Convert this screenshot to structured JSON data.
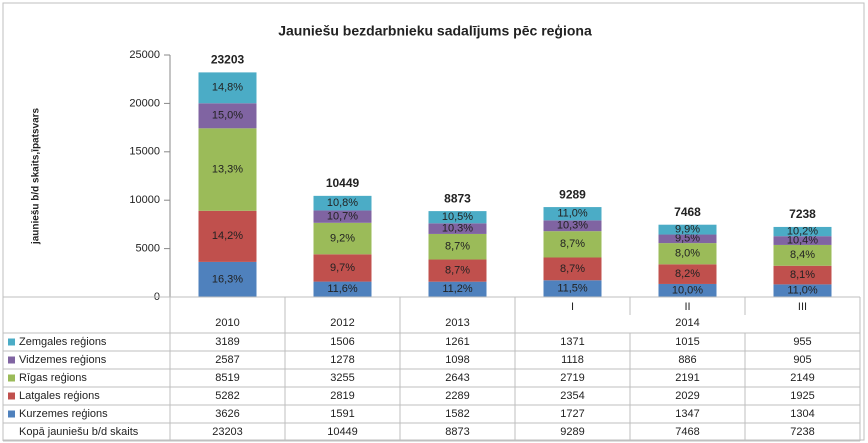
{
  "chart_data": {
    "type": "stacked_bar",
    "title": "Jauniešu bezdarbnieku sadalījums pēc reģiona",
    "y_label": "jauniešu b/d skaits,īpatsvars",
    "categories": [
      "2010",
      "2012",
      "2013",
      "I",
      "II",
      "III"
    ],
    "category_groups": [
      {
        "label": "2014",
        "members": [
          3,
          4,
          5
        ]
      }
    ],
    "ylim": [
      0,
      25000
    ],
    "yticks": [
      0,
      5000,
      10000,
      15000,
      20000,
      25000
    ],
    "grid": false,
    "series": [
      {
        "name": "Kurzemes reģions",
        "color": "#4f81bd",
        "values": [
          3626,
          1591,
          1582,
          1727,
          1347,
          1304
        ],
        "share_labels": [
          "16,3%",
          "11,6%",
          "11,2%",
          "11,5%",
          "10,0%",
          "11,0%"
        ]
      },
      {
        "name": "Latgales reģions",
        "color": "#c0504d",
        "values": [
          5282,
          2819,
          2289,
          2354,
          2029,
          1925
        ],
        "share_labels": [
          "14,2%",
          "9,7%",
          "8,7%",
          "8,7%",
          "8,2%",
          "8,1%"
        ]
      },
      {
        "name": "Rīgas reģions",
        "color": "#9bbb59",
        "values": [
          8519,
          3255,
          2643,
          2719,
          2191,
          2149
        ],
        "share_labels": [
          "13,3%",
          "9,2%",
          "8,7%",
          "8,7%",
          "8,0%",
          "8,4%"
        ]
      },
      {
        "name": "Vidzemes reģions",
        "color": "#8064a2",
        "values": [
          2587,
          1278,
          1098,
          1118,
          886,
          905
        ],
        "share_labels": [
          "15,0%",
          "10,7%",
          "10,3%",
          "10,3%",
          "9,5%",
          "10,4%"
        ]
      },
      {
        "name": "Zemgales reģions",
        "color": "#4bacc6",
        "values": [
          3189,
          1506,
          1261,
          1371,
          1015,
          955
        ],
        "share_labels": [
          "14,8%",
          "10,8%",
          "10,5%",
          "11,0%",
          "9,9%",
          "10,2%"
        ]
      }
    ],
    "total_name": "Kopā jauniešu b/d skaits",
    "totals": [
      23203,
      10449,
      8873,
      9289,
      7468,
      7238
    ]
  }
}
